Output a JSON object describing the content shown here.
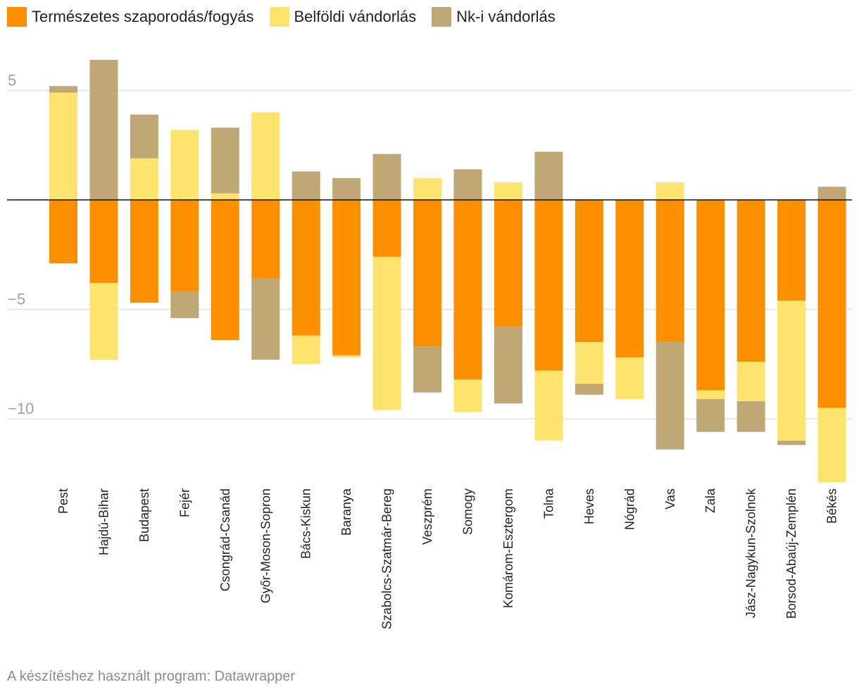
{
  "chart_data": {
    "type": "bar",
    "stacked": true,
    "categories": [
      "Pest",
      "Hajdú-Bihar",
      "Budapest",
      "Fejér",
      "Csongrád-Csanád",
      "Győr-Moson-Sopron",
      "Bács-Kiskun",
      "Baranya",
      "Szabolcs-Szatmár-Bereg",
      "Veszprém",
      "Somogy",
      "Komárom-Esztergom",
      "Tolna",
      "Heves",
      "Nógrád",
      "Vas",
      "Zala",
      "Jász-Nagykun-Szolnok",
      "Borsod-Abaúj-Zemplén",
      "Békés"
    ],
    "series": [
      {
        "name": "Természetes szaporodás/fogyás",
        "color": "#fc8f00",
        "values": [
          -2.9,
          -3.8,
          -4.7,
          -4.2,
          -6.4,
          -3.6,
          -6.2,
          -7.1,
          -2.6,
          -6.7,
          -8.2,
          -5.8,
          -7.8,
          -6.5,
          -7.2,
          -6.5,
          -8.7,
          -7.4,
          -4.6,
          -9.5
        ]
      },
      {
        "name": "Belföldi vándorlás",
        "color": "#fee46f",
        "values": [
          4.9,
          -3.5,
          1.9,
          3.2,
          0.3,
          4.0,
          -1.3,
          -0.1,
          -7.0,
          1.0,
          -1.5,
          0.8,
          -3.2,
          -1.9,
          -1.9,
          0.8,
          -0.4,
          -1.8,
          -6.4,
          -3.4
        ]
      },
      {
        "name": "Nk-i vándorlás",
        "color": "#bfa875",
        "values": [
          0.3,
          6.4,
          2.0,
          -1.2,
          3.0,
          -3.7,
          1.3,
          1.0,
          2.1,
          -2.1,
          1.4,
          -3.5,
          2.2,
          -0.5,
          0.0,
          -4.9,
          -1.5,
          -1.4,
          -0.2,
          0.6
        ]
      }
    ],
    "yticks": [
      5,
      -5,
      -10
    ],
    "ytick_labels": [
      "5",
      "−5",
      "−10"
    ],
    "ylim": [
      -13,
      6.5
    ],
    "title": "",
    "xlabel": "",
    "ylabel": ""
  },
  "footer": {
    "source": "A készítéshez használt program: Datawrapper"
  }
}
